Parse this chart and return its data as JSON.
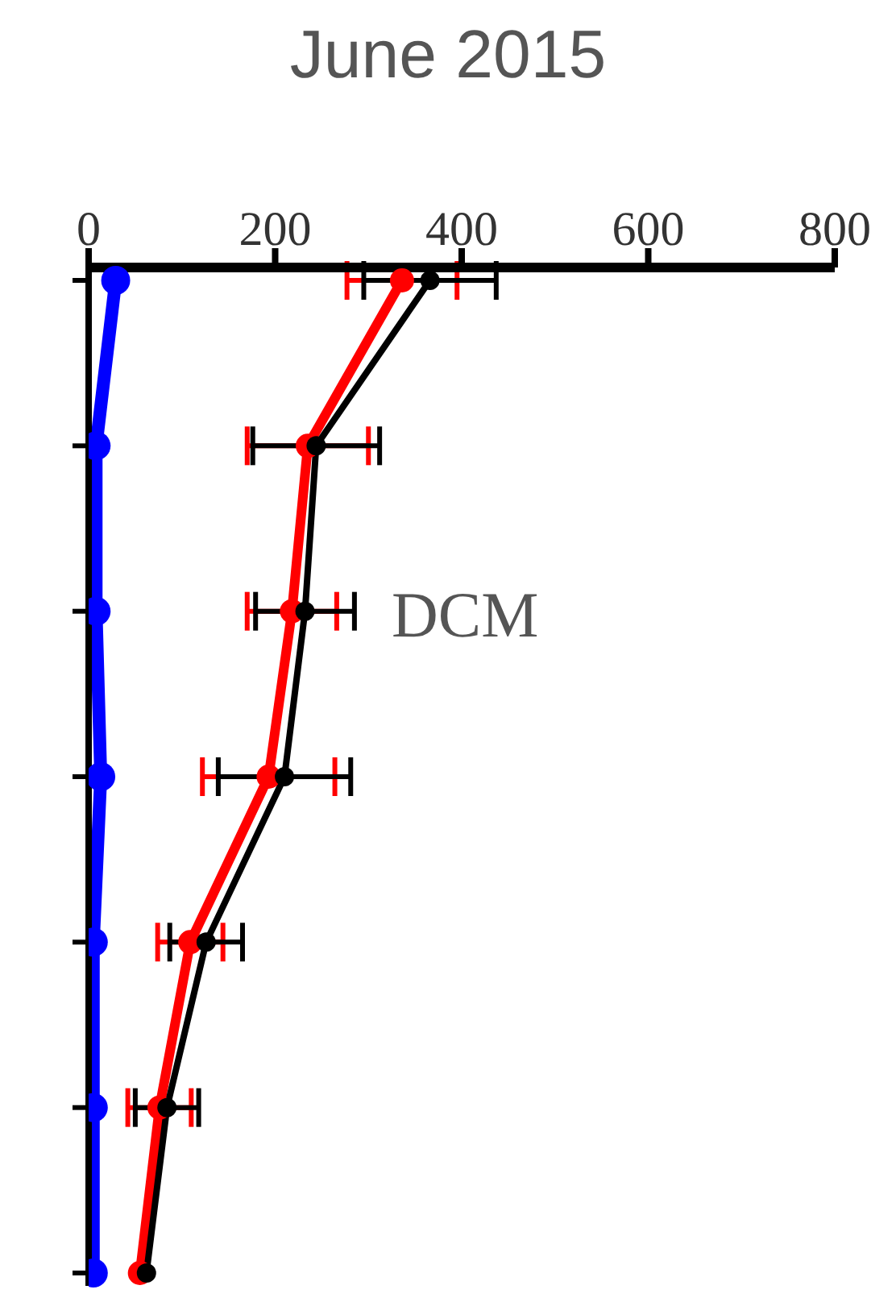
{
  "chart_data": {
    "type": "line",
    "orientation": "horizontal",
    "title": "June 2015",
    "categories": [
      null,
      null,
      null,
      null,
      null,
      null,
      null
    ],
    "xlim": [
      0,
      800
    ],
    "xticks": [
      0,
      200,
      400,
      600,
      800
    ],
    "grid": false,
    "marker": "circle",
    "line_style": "solid",
    "series": [
      {
        "color": "#0000ff",
        "values": [
          29,
          8,
          8,
          13,
          5,
          5,
          5
        ]
      },
      {
        "color": "#ff0000",
        "values": [
          336,
          235,
          218,
          193,
          109,
          76,
          55
        ],
        "errors": [
          59,
          65,
          48,
          71,
          35,
          34,
          null
        ]
      },
      {
        "color": "#000000",
        "values": [
          366,
          244,
          232,
          210,
          126,
          84,
          62
        ],
        "errors": [
          71,
          68,
          53,
          71,
          39,
          34,
          null
        ]
      }
    ],
    "annotations": [
      "DCM"
    ]
  }
}
